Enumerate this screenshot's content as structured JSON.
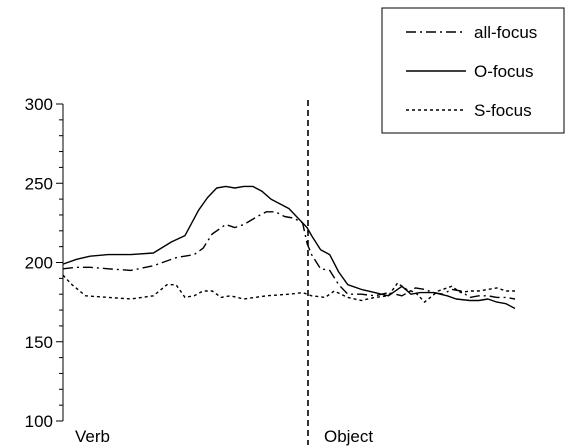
{
  "chart_data": {
    "type": "line",
    "title": "",
    "xlabel": "",
    "ylabel": "",
    "ylim": [
      100,
      300
    ],
    "yticks": [
      100,
      150,
      200,
      250,
      300
    ],
    "y_minor_step": 10,
    "xlim": [
      0,
      1
    ],
    "grid": false,
    "legend_position": "top-right",
    "region_labels": [
      {
        "text": "Verb",
        "x": 0.02
      },
      {
        "text": "Object",
        "x": 0.542
      }
    ],
    "boundary_x": 0.542,
    "series": [
      {
        "name": "all-focus",
        "style": "dashdot",
        "x": [
          0,
          0.03,
          0.06,
          0.1,
          0.15,
          0.2,
          0.25,
          0.29,
          0.31,
          0.33,
          0.36,
          0.38,
          0.4,
          0.43,
          0.45,
          0.47,
          0.49,
          0.51,
          0.53,
          0.54,
          0.55,
          0.57,
          0.59,
          0.61,
          0.63,
          0.66,
          0.69,
          0.72,
          0.75,
          0.78,
          0.8,
          0.82,
          0.84,
          0.86,
          0.88,
          0.9,
          0.92,
          0.94,
          0.96,
          0.98,
          1.0
        ],
        "values": [
          196,
          197,
          197,
          196,
          195,
          198,
          203,
          205,
          209,
          218,
          224,
          222,
          224,
          229,
          232,
          232,
          229,
          228,
          225,
          212,
          205,
          196,
          195,
          186,
          180,
          180,
          179,
          181,
          179,
          184,
          183,
          181,
          180,
          183,
          182,
          178,
          179,
          179,
          178,
          178,
          177
        ]
      },
      {
        "name": "O-focus",
        "style": "solid",
        "x": [
          0,
          0.03,
          0.06,
          0.1,
          0.15,
          0.2,
          0.24,
          0.27,
          0.3,
          0.32,
          0.34,
          0.36,
          0.38,
          0.4,
          0.42,
          0.44,
          0.46,
          0.48,
          0.5,
          0.52,
          0.54,
          0.55,
          0.57,
          0.59,
          0.61,
          0.63,
          0.66,
          0.69,
          0.72,
          0.75,
          0.77,
          0.79,
          0.82,
          0.85,
          0.87,
          0.9,
          0.92,
          0.94,
          0.96,
          0.98,
          1.0
        ],
        "values": [
          199,
          202,
          204,
          205,
          205,
          206,
          213,
          217,
          233,
          241,
          247,
          248,
          247,
          248,
          248,
          245,
          240,
          237,
          234,
          228,
          222,
          217,
          208,
          205,
          194,
          186,
          183,
          181,
          179,
          185,
          180,
          181,
          181,
          179,
          177,
          176,
          176,
          177,
          175,
          174,
          171
        ]
      },
      {
        "name": "S-focus",
        "style": "dotted",
        "x": [
          0,
          0.02,
          0.05,
          0.1,
          0.15,
          0.2,
          0.23,
          0.25,
          0.27,
          0.29,
          0.31,
          0.33,
          0.35,
          0.37,
          0.4,
          0.45,
          0.5,
          0.53,
          0.55,
          0.58,
          0.6,
          0.63,
          0.66,
          0.69,
          0.72,
          0.74,
          0.76,
          0.78,
          0.8,
          0.83,
          0.86,
          0.88,
          0.9,
          0.92,
          0.94,
          0.96,
          0.98,
          1.0
        ],
        "values": [
          192,
          186,
          179,
          178,
          177,
          179,
          186,
          186,
          178,
          179,
          182,
          182,
          178,
          179,
          177,
          179,
          180,
          181,
          179,
          178,
          182,
          178,
          176,
          178,
          179,
          187,
          183,
          181,
          175,
          182,
          185,
          181,
          182,
          182,
          183,
          184,
          182,
          182
        ]
      }
    ]
  }
}
